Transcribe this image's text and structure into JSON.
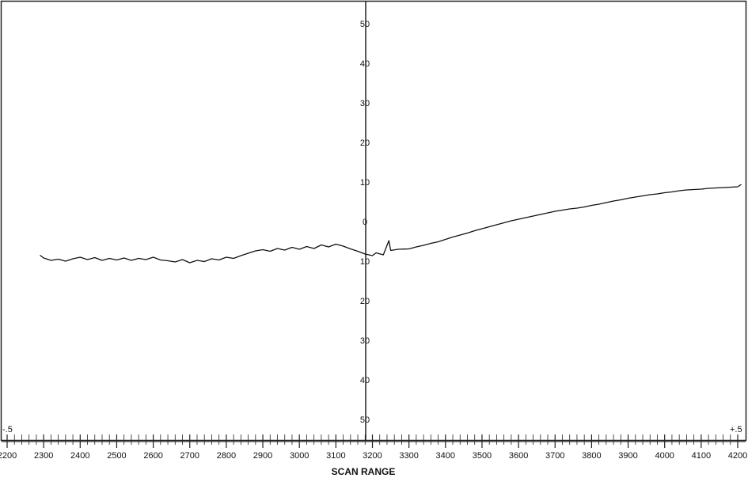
{
  "chart_data": {
    "type": "line",
    "title": "",
    "xlabel": "SCAN RANGE",
    "ylabel": "",
    "x_ticks": [
      2200,
      2300,
      2400,
      2500,
      2600,
      2700,
      2800,
      2900,
      3000,
      3100,
      3200,
      3300,
      3400,
      3500,
      3600,
      3700,
      3800,
      3900,
      4000,
      4100,
      4200
    ],
    "xlim": [
      2200,
      4200
    ],
    "y_upper_ticks": [
      50,
      40,
      30,
      20,
      10,
      0
    ],
    "y_lower_ticks": [
      10,
      20,
      30,
      40,
      50
    ],
    "ylim": [
      -50,
      50
    ],
    "corner_left_label": "-.5",
    "corner_right_label": "+.5",
    "grid": false,
    "series": [
      {
        "values": [
          [
            2290,
            -8.5
          ],
          [
            2300,
            -9.2
          ],
          [
            2320,
            -9.8
          ],
          [
            2340,
            -9.5
          ],
          [
            2360,
            -10.0
          ],
          [
            2380,
            -9.4
          ],
          [
            2400,
            -9.0
          ],
          [
            2420,
            -9.6
          ],
          [
            2440,
            -9.1
          ],
          [
            2460,
            -9.8
          ],
          [
            2480,
            -9.3
          ],
          [
            2500,
            -9.7
          ],
          [
            2520,
            -9.2
          ],
          [
            2540,
            -9.8
          ],
          [
            2560,
            -9.3
          ],
          [
            2580,
            -9.6
          ],
          [
            2600,
            -9.0
          ],
          [
            2620,
            -9.7
          ],
          [
            2640,
            -9.9
          ],
          [
            2660,
            -10.2
          ],
          [
            2680,
            -9.6
          ],
          [
            2700,
            -10.4
          ],
          [
            2720,
            -9.8
          ],
          [
            2740,
            -10.1
          ],
          [
            2760,
            -9.4
          ],
          [
            2780,
            -9.7
          ],
          [
            2800,
            -9.0
          ],
          [
            2820,
            -9.3
          ],
          [
            2840,
            -8.6
          ],
          [
            2860,
            -8.0
          ],
          [
            2880,
            -7.4
          ],
          [
            2900,
            -7.1
          ],
          [
            2920,
            -7.5
          ],
          [
            2940,
            -6.8
          ],
          [
            2960,
            -7.2
          ],
          [
            2980,
            -6.5
          ],
          [
            3000,
            -7.0
          ],
          [
            3020,
            -6.3
          ],
          [
            3040,
            -6.8
          ],
          [
            3060,
            -5.9
          ],
          [
            3080,
            -6.4
          ],
          [
            3100,
            -5.7
          ],
          [
            3120,
            -6.2
          ],
          [
            3140,
            -6.9
          ],
          [
            3160,
            -7.5
          ],
          [
            3180,
            -8.2
          ],
          [
            3200,
            -8.6
          ],
          [
            3210,
            -7.9
          ],
          [
            3230,
            -8.4
          ],
          [
            3245,
            -4.8
          ],
          [
            3250,
            -7.3
          ],
          [
            3270,
            -7.0
          ],
          [
            3300,
            -6.9
          ],
          [
            3320,
            -6.4
          ],
          [
            3340,
            -6.0
          ],
          [
            3360,
            -5.5
          ],
          [
            3380,
            -5.1
          ],
          [
            3400,
            -4.5
          ],
          [
            3420,
            -3.9
          ],
          [
            3440,
            -3.4
          ],
          [
            3460,
            -2.9
          ],
          [
            3480,
            -2.3
          ],
          [
            3500,
            -1.8
          ],
          [
            3520,
            -1.3
          ],
          [
            3540,
            -0.8
          ],
          [
            3560,
            -0.3
          ],
          [
            3580,
            0.2
          ],
          [
            3600,
            0.6
          ],
          [
            3620,
            1.0
          ],
          [
            3640,
            1.4
          ],
          [
            3660,
            1.8
          ],
          [
            3680,
            2.2
          ],
          [
            3700,
            2.6
          ],
          [
            3720,
            2.9
          ],
          [
            3740,
            3.2
          ],
          [
            3760,
            3.4
          ],
          [
            3780,
            3.7
          ],
          [
            3800,
            4.1
          ],
          [
            3820,
            4.4
          ],
          [
            3840,
            4.8
          ],
          [
            3860,
            5.2
          ],
          [
            3880,
            5.5
          ],
          [
            3900,
            5.9
          ],
          [
            3920,
            6.2
          ],
          [
            3940,
            6.5
          ],
          [
            3960,
            6.8
          ],
          [
            3980,
            7.0
          ],
          [
            4000,
            7.3
          ],
          [
            4020,
            7.5
          ],
          [
            4040,
            7.8
          ],
          [
            4060,
            8.0
          ],
          [
            4080,
            8.1
          ],
          [
            4100,
            8.2
          ],
          [
            4120,
            8.4
          ],
          [
            4140,
            8.5
          ],
          [
            4160,
            8.6
          ],
          [
            4180,
            8.7
          ],
          [
            4200,
            8.8
          ],
          [
            4210,
            9.4
          ]
        ]
      }
    ]
  }
}
